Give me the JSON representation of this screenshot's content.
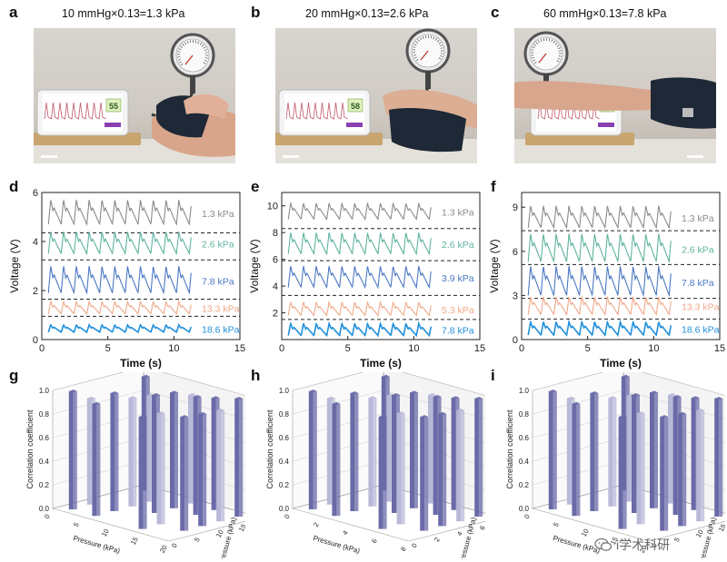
{
  "panels": {
    "a": {
      "letter": "a",
      "title": "10 mmHg×0.13=1.3 kPa",
      "screen_value": "55"
    },
    "b": {
      "letter": "b",
      "title": "20 mmHg×0.13=2.6 kPa",
      "screen_value": "58"
    },
    "c": {
      "letter": "c",
      "title": "60 mmHg×0.13=7.8 kPa",
      "screen_value": "64"
    },
    "d": {
      "letter": "d"
    },
    "e": {
      "letter": "e"
    },
    "f": {
      "letter": "f"
    },
    "g": {
      "letter": "g"
    },
    "h": {
      "letter": "h"
    },
    "i": {
      "letter": "i"
    }
  },
  "colors": {
    "gray": "#8a8a8a",
    "green": "#5fb3a0",
    "blue": "#4a78c4",
    "peach": "#f0a888",
    "lightblue": "#1f8fdc",
    "bar_dark": "#6a6aa8",
    "bar_light": "#b8b8d8"
  },
  "chart_data": [
    {
      "id": "d",
      "type": "line",
      "xlabel": "Time (s)",
      "ylabel": "Voltage (V)",
      "xlim": [
        0,
        15
      ],
      "ylim": [
        0,
        6
      ],
      "xticks": [
        0,
        5,
        10,
        15
      ],
      "yticks": [
        0,
        2,
        4,
        6
      ],
      "series": [
        {
          "name": "1.3 kPa",
          "color": "#8a8a8a",
          "base": 4.7,
          "amp": 1.0
        },
        {
          "name": "2.6 kPa",
          "color": "#5fb3a0",
          "base": 3.5,
          "amp": 0.9
        },
        {
          "name": "7.8 kPa",
          "color": "#4a78c4",
          "base": 1.9,
          "amp": 1.1
        },
        {
          "name": "13.3 kPa",
          "color": "#f0a888",
          "base": 1.05,
          "amp": 0.5
        },
        {
          "name": "18.6 kPa",
          "color": "#1f8fdc",
          "base": 0.3,
          "amp": 0.3
        }
      ],
      "dividers": [
        4.35,
        3.25,
        1.65,
        0.95
      ]
    },
    {
      "id": "e",
      "type": "line",
      "xlabel": "Time (s)",
      "ylabel": "Voltage (V)",
      "xlim": [
        0,
        15
      ],
      "ylim": [
        0,
        11
      ],
      "xticks": [
        0,
        5,
        10,
        15
      ],
      "yticks": [
        2,
        4,
        6,
        8,
        10
      ],
      "series": [
        {
          "name": "1.3 kPa",
          "color": "#8a8a8a",
          "base": 9.0,
          "amp": 1.2
        },
        {
          "name": "2.6 kPa",
          "color": "#5fb3a0",
          "base": 6.4,
          "amp": 1.6
        },
        {
          "name": "3.9 kPa",
          "color": "#4a78c4",
          "base": 3.9,
          "amp": 1.6
        },
        {
          "name": "5.3 kPa",
          "color": "#f0a888",
          "base": 1.8,
          "amp": 1.0
        },
        {
          "name": "7.8 kPa",
          "color": "#1f8fdc",
          "base": 0.3,
          "amp": 0.9
        }
      ],
      "dividers": [
        8.3,
        5.9,
        3.3,
        1.5
      ]
    },
    {
      "id": "f",
      "type": "line",
      "xlabel": "Time (s)",
      "ylabel": "Voltage (V)",
      "xlim": [
        0,
        15
      ],
      "ylim": [
        0,
        10
      ],
      "xticks": [
        0,
        5,
        10,
        15
      ],
      "yticks": [
        0,
        3,
        6,
        9
      ],
      "series": [
        {
          "name": "1.3 kPa",
          "color": "#8a8a8a",
          "base": 7.6,
          "amp": 1.5
        },
        {
          "name": "2.6 kPa",
          "color": "#5fb3a0",
          "base": 5.3,
          "amp": 1.9
        },
        {
          "name": "7.8 kPa",
          "color": "#4a78c4",
          "base": 3.0,
          "amp": 2.0
        },
        {
          "name": "13.3 kPa",
          "color": "#f0a888",
          "base": 1.7,
          "amp": 1.2
        },
        {
          "name": "18.6 kPa",
          "color": "#1f8fdc",
          "base": 0.3,
          "amp": 0.9
        }
      ],
      "dividers": [
        7.4,
        5.1,
        2.8,
        1.4
      ]
    },
    {
      "id": "g",
      "type": "bar",
      "zlabel": "Correlation coefficient",
      "xlabel": "Pressure (kPa)",
      "ylabel": "Pressure (kPa)",
      "zticks": [
        "0.0",
        "0.2",
        "0.4",
        "0.6",
        "0.8",
        "1.0"
      ],
      "xticks": [
        "0",
        "5",
        "10",
        "15",
        "20"
      ],
      "yticks": [
        "0",
        "5",
        "10",
        "15",
        "20"
      ]
    },
    {
      "id": "h",
      "type": "bar",
      "zlabel": "Correlation coefficient",
      "xlabel": "Pressure (kPa)",
      "ylabel": "Pressure (kPa)",
      "zticks": [
        "0.0",
        "0.2",
        "0.4",
        "0.6",
        "0.8",
        "1.0"
      ],
      "xticks": [
        "0",
        "2",
        "4",
        "6",
        "8"
      ],
      "yticks": [
        "0",
        "2",
        "4",
        "6",
        "8"
      ]
    },
    {
      "id": "i",
      "type": "bar",
      "zlabel": "Correlation coefficient",
      "xlabel": "Pressure (kPa)",
      "ylabel": "Pressure (kPa)",
      "zticks": [
        "0.0",
        "0.2",
        "0.4",
        "0.6",
        "0.8",
        "1.0"
      ],
      "xticks": [
        "0",
        "5",
        "10",
        "15",
        "20"
      ],
      "yticks": [
        "0",
        "5",
        "10",
        "15",
        "20"
      ]
    }
  ],
  "watermark": {
    "text": "i学术科研",
    "icon": "wechat-icon"
  }
}
